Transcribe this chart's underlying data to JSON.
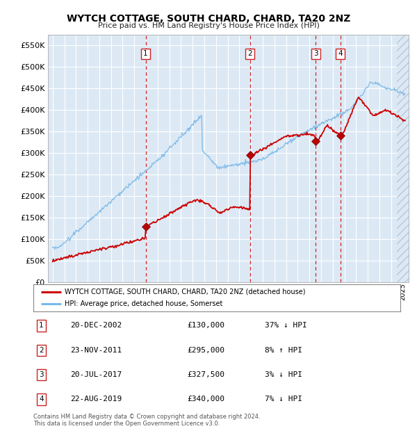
{
  "title": "WYTCH COTTAGE, SOUTH CHARD, CHARD, TA20 2NZ",
  "subtitle": "Price paid vs. HM Land Registry's House Price Index (HPI)",
  "legend_line1": "WYTCH COTTAGE, SOUTH CHARD, CHARD, TA20 2NZ (detached house)",
  "legend_line2": "HPI: Average price, detached house, Somerset",
  "footer1": "Contains HM Land Registry data © Crown copyright and database right 2024.",
  "footer2": "This data is licensed under the Open Government Licence v3.0.",
  "transactions": [
    {
      "num": 1,
      "date": "20-DEC-2002",
      "price": 130000,
      "pct": "37%",
      "dir": "↓",
      "year": 2002.97
    },
    {
      "num": 2,
      "date": "23-NOV-2011",
      "price": 295000,
      "pct": "8%",
      "dir": "↑",
      "year": 2011.9
    },
    {
      "num": 3,
      "date": "20-JUL-2017",
      "price": 327500,
      "pct": "3%",
      "dir": "↓",
      "year": 2017.55
    },
    {
      "num": 4,
      "date": "22-AUG-2019",
      "price": 340000,
      "pct": "7%",
      "dir": "↓",
      "year": 2019.64
    }
  ],
  "yticks": [
    0,
    50000,
    100000,
    150000,
    200000,
    250000,
    300000,
    350000,
    400000,
    450000,
    500000,
    550000
  ],
  "ylim": [
    0,
    575000
  ],
  "xlim_start": 1994.6,
  "xlim_end": 2025.5,
  "background_color": "#ffffff",
  "plot_bg_color": "#dce9f5",
  "hpi_line_color": "#7ab8e8",
  "price_line_color": "#cc0000",
  "vline_color": "#cc0000",
  "grid_color": "#ffffff"
}
